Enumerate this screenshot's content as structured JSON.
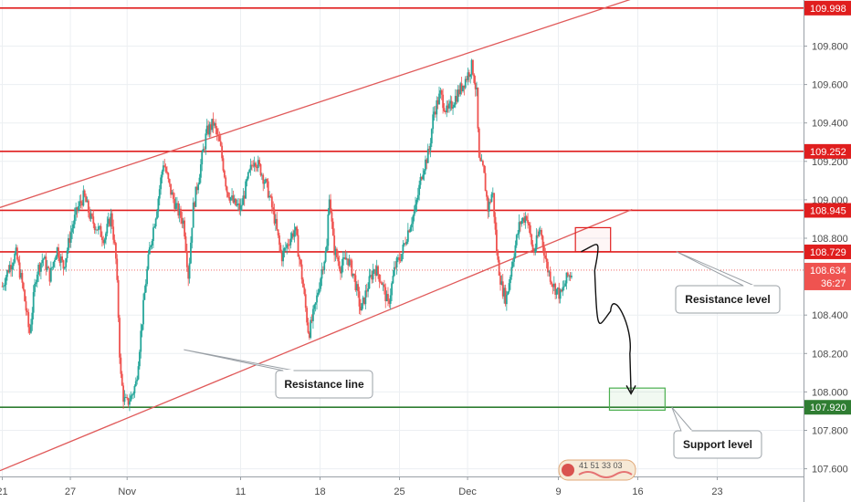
{
  "chart_data": {
    "type": "candlestick",
    "y_axis": {
      "ylim": [
        107.56,
        110.04
      ],
      "ticks": [
        "109.800",
        "109.600",
        "109.400",
        "109.200",
        "109.000",
        "108.800",
        "108.400",
        "108.200",
        "108.000",
        "107.800",
        "107.600"
      ],
      "position": "right"
    },
    "x_axis": {
      "ticks": [
        {
          "label": "21",
          "day": -11
        },
        {
          "label": "27",
          "day": -5
        },
        {
          "label": "Nov",
          "day": 0
        },
        {
          "label": "11",
          "day": 10
        },
        {
          "label": "18",
          "day": 17
        },
        {
          "label": "25",
          "day": 24
        },
        {
          "label": "Dec",
          "day": 30
        },
        {
          "label": "9",
          "day": 38
        },
        {
          "label": "16",
          "day": 45
        },
        {
          "label": "23",
          "day": 52
        }
      ],
      "xlim_days": [
        -11.2,
        59.6
      ]
    },
    "horizontal_levels": [
      {
        "price": 109.998,
        "label": "109.998",
        "color": "#e01e1e"
      },
      {
        "price": 109.252,
        "label": "109.252",
        "color": "#e01e1e"
      },
      {
        "price": 108.945,
        "label": "108.945",
        "color": "#e01e1e"
      },
      {
        "price": 108.729,
        "label": "108.729",
        "color": "#e01e1e"
      },
      {
        "price": 107.92,
        "label": "107.920",
        "color": "#2f7d32"
      }
    ],
    "current_price": {
      "price": 108.634,
      "label": "108.634",
      "countdown": "36:27",
      "color": "#ef5350"
    },
    "trendlines": [
      {
        "name": "upper-channel",
        "from": {
          "day": -11.2,
          "price": 108.96
        },
        "to": {
          "day": 48.3,
          "price": 110.12
        }
      },
      {
        "name": "lower-channel",
        "from": {
          "day": -11.2,
          "price": 107.59
        },
        "to": {
          "day": 44.5,
          "price": 108.95
        }
      }
    ],
    "price_path": [
      [
        -11.0,
        108.55
      ],
      [
        -10.4,
        108.65
      ],
      [
        -9.8,
        108.72
      ],
      [
        -9.2,
        108.55
      ],
      [
        -8.6,
        108.3
      ],
      [
        -8.0,
        108.62
      ],
      [
        -7.4,
        108.7
      ],
      [
        -6.8,
        108.6
      ],
      [
        -6.2,
        108.75
      ],
      [
        -5.6,
        108.65
      ],
      [
        -5.0,
        108.82
      ],
      [
        -4.4,
        108.95
      ],
      [
        -3.8,
        109.02
      ],
      [
        -3.2,
        108.9
      ],
      [
        -2.6,
        108.85
      ],
      [
        -2.0,
        108.8
      ],
      [
        -1.4,
        108.92
      ],
      [
        -1.0,
        108.7
      ],
      [
        -0.8,
        108.45
      ],
      [
        -0.6,
        108.1
      ],
      [
        -0.3,
        107.96
      ],
      [
        0.0,
        107.94
      ],
      [
        0.4,
        107.98
      ],
      [
        0.8,
        108.05
      ],
      [
        1.2,
        108.3
      ],
      [
        1.6,
        108.55
      ],
      [
        2.0,
        108.75
      ],
      [
        2.6,
        108.95
      ],
      [
        3.2,
        109.2
      ],
      [
        3.8,
        109.05
      ],
      [
        4.4,
        108.95
      ],
      [
        5.0,
        108.88
      ],
      [
        5.4,
        108.6
      ],
      [
        5.8,
        108.95
      ],
      [
        6.4,
        109.15
      ],
      [
        7.0,
        109.35
      ],
      [
        7.6,
        109.4
      ],
      [
        8.2,
        109.28
      ],
      [
        8.8,
        109.05
      ],
      [
        9.4,
        108.98
      ],
      [
        10.0,
        108.95
      ],
      [
        10.6,
        109.1
      ],
      [
        11.2,
        109.22
      ],
      [
        11.8,
        109.15
      ],
      [
        12.4,
        109.05
      ],
      [
        13.0,
        108.9
      ],
      [
        13.6,
        108.7
      ],
      [
        14.2,
        108.78
      ],
      [
        14.8,
        108.85
      ],
      [
        15.4,
        108.6
      ],
      [
        16.0,
        108.3
      ],
      [
        16.6,
        108.45
      ],
      [
        17.2,
        108.65
      ],
      [
        17.6,
        108.75
      ],
      [
        17.8,
        109.05
      ],
      [
        18.2,
        108.75
      ],
      [
        18.8,
        108.65
      ],
      [
        19.4,
        108.7
      ],
      [
        20.0,
        108.6
      ],
      [
        20.6,
        108.42
      ],
      [
        21.2,
        108.55
      ],
      [
        21.8,
        108.65
      ],
      [
        22.4,
        108.58
      ],
      [
        23.0,
        108.45
      ],
      [
        23.6,
        108.65
      ],
      [
        24.2,
        108.72
      ],
      [
        24.8,
        108.85
      ],
      [
        25.4,
        108.95
      ],
      [
        26.0,
        109.15
      ],
      [
        26.6,
        109.25
      ],
      [
        27.0,
        109.45
      ],
      [
        27.6,
        109.55
      ],
      [
        28.2,
        109.45
      ],
      [
        28.8,
        109.52
      ],
      [
        29.4,
        109.58
      ],
      [
        30.0,
        109.65
      ],
      [
        30.4,
        109.7
      ],
      [
        30.8,
        109.55
      ],
      [
        31.0,
        109.2
      ],
      [
        31.4,
        109.15
      ],
      [
        31.8,
        108.95
      ],
      [
        32.2,
        109.05
      ],
      [
        32.6,
        108.7
      ],
      [
        33.0,
        108.55
      ],
      [
        33.4,
        108.48
      ],
      [
        34.0,
        108.7
      ],
      [
        34.6,
        108.88
      ],
      [
        35.2,
        108.92
      ],
      [
        35.8,
        108.72
      ],
      [
        36.4,
        108.85
      ],
      [
        37.0,
        108.65
      ],
      [
        37.6,
        108.55
      ],
      [
        38.2,
        108.5
      ],
      [
        38.8,
        108.6
      ],
      [
        39.2,
        108.62
      ]
    ],
    "projection_path": [
      [
        40.0,
        108.73
      ],
      [
        41.2,
        108.68
      ],
      [
        41.6,
        108.4
      ],
      [
        42.6,
        108.42
      ],
      [
        43.4,
        108.45
      ],
      [
        44.3,
        108.2
      ],
      [
        44.4,
        108.0
      ]
    ],
    "target_boxes": [
      {
        "name": "target-box-red",
        "day_range": [
          39.5,
          42.6
        ],
        "price_range": [
          108.73,
          108.855
        ],
        "color": "#e01e1e"
      },
      {
        "name": "target-box-green",
        "day_range": [
          42.5,
          47.4
        ],
        "price_range": [
          107.905,
          108.02
        ],
        "color": "#4caf50"
      }
    ],
    "annotations": [
      {
        "text": "Resistance level",
        "anchor_day": 48.4,
        "anchor_price": 108.73
      },
      {
        "text": "Resistance line",
        "anchor_day": 5.0,
        "anchor_price": 108.22
      },
      {
        "text": "Support level",
        "anchor_day": 48.0,
        "anchor_price": 107.92
      }
    ]
  },
  "watermark": {
    "text": "41 51 33 03"
  }
}
